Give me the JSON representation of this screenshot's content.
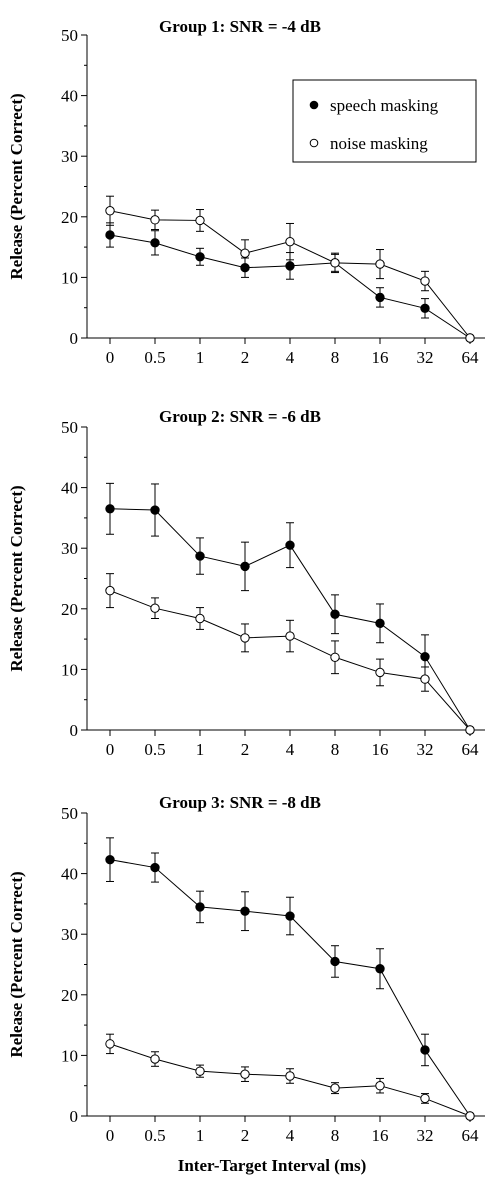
{
  "chart_data": [
    {
      "type": "line",
      "title": "Group 1: SNR = -4 dB",
      "ylabel": "Release (Percent Correct)",
      "xlabel": "",
      "categories": [
        "0",
        "0.5",
        "1",
        "2",
        "4",
        "8",
        "16",
        "32",
        "64"
      ],
      "ylim": [
        0,
        50
      ],
      "yticks": [
        "0",
        "10",
        "20",
        "30",
        "40",
        "50"
      ],
      "legend": {
        "placement": "top-right",
        "entries": [
          "speech masking",
          "noise masking"
        ]
      },
      "series": [
        {
          "name": "speech masking",
          "marker": "filled",
          "values": [
            17,
            15.7,
            13.4,
            11.6,
            11.9,
            12.4,
            6.7,
            4.9,
            0
          ],
          "err": [
            2.0,
            2.0,
            1.4,
            1.6,
            2.2,
            1.6,
            1.6,
            1.6,
            0
          ]
        },
        {
          "name": "noise masking",
          "marker": "open",
          "values": [
            21,
            19.5,
            19.4,
            14,
            15.9,
            12.4,
            12.2,
            9.4,
            0
          ],
          "err": [
            2.4,
            1.6,
            1.8,
            2.2,
            3.0,
            1.4,
            2.4,
            1.6,
            0
          ]
        }
      ]
    },
    {
      "type": "line",
      "title": "Group 2: SNR = -6 dB",
      "ylabel": "Release (Percent Correct)",
      "xlabel": "",
      "categories": [
        "0",
        "0.5",
        "1",
        "2",
        "4",
        "8",
        "16",
        "32",
        "64"
      ],
      "ylim": [
        0,
        50
      ],
      "yticks": [
        "0",
        "10",
        "20",
        "30",
        "40",
        "50"
      ],
      "series": [
        {
          "name": "speech masking",
          "marker": "filled",
          "values": [
            36.5,
            36.3,
            28.7,
            27,
            30.5,
            19.1,
            17.6,
            12.1,
            0
          ],
          "err": [
            4.2,
            4.3,
            3.0,
            4.0,
            3.7,
            3.2,
            3.2,
            3.6,
            0
          ]
        },
        {
          "name": "noise masking",
          "marker": "open",
          "values": [
            23,
            20.1,
            18.4,
            15.2,
            15.5,
            12.0,
            9.5,
            8.4,
            0
          ],
          "err": [
            2.8,
            1.7,
            1.8,
            2.3,
            2.6,
            2.7,
            2.2,
            2.0,
            0
          ]
        }
      ]
    },
    {
      "type": "line",
      "title": "Group 3: SNR = -8 dB",
      "ylabel": "Release (Percent Correct)",
      "xlabel": "Inter-Target Interval (ms)",
      "categories": [
        "0",
        "0.5",
        "1",
        "2",
        "4",
        "8",
        "16",
        "32",
        "64"
      ],
      "ylim": [
        0,
        50
      ],
      "yticks": [
        "0",
        "10",
        "20",
        "30",
        "40",
        "50"
      ],
      "series": [
        {
          "name": "speech masking",
          "marker": "filled",
          "values": [
            42.3,
            41.0,
            34.5,
            33.8,
            33.0,
            25.5,
            24.3,
            10.9,
            0
          ],
          "err": [
            3.6,
            2.4,
            2.6,
            3.2,
            3.1,
            2.6,
            3.3,
            2.6,
            0
          ]
        },
        {
          "name": "noise masking",
          "marker": "open",
          "values": [
            11.9,
            9.4,
            7.4,
            6.9,
            6.6,
            4.6,
            5.0,
            2.9,
            0
          ],
          "err": [
            1.6,
            1.2,
            1.0,
            1.2,
            1.2,
            0.9,
            1.2,
            0.8,
            0
          ]
        }
      ]
    }
  ]
}
